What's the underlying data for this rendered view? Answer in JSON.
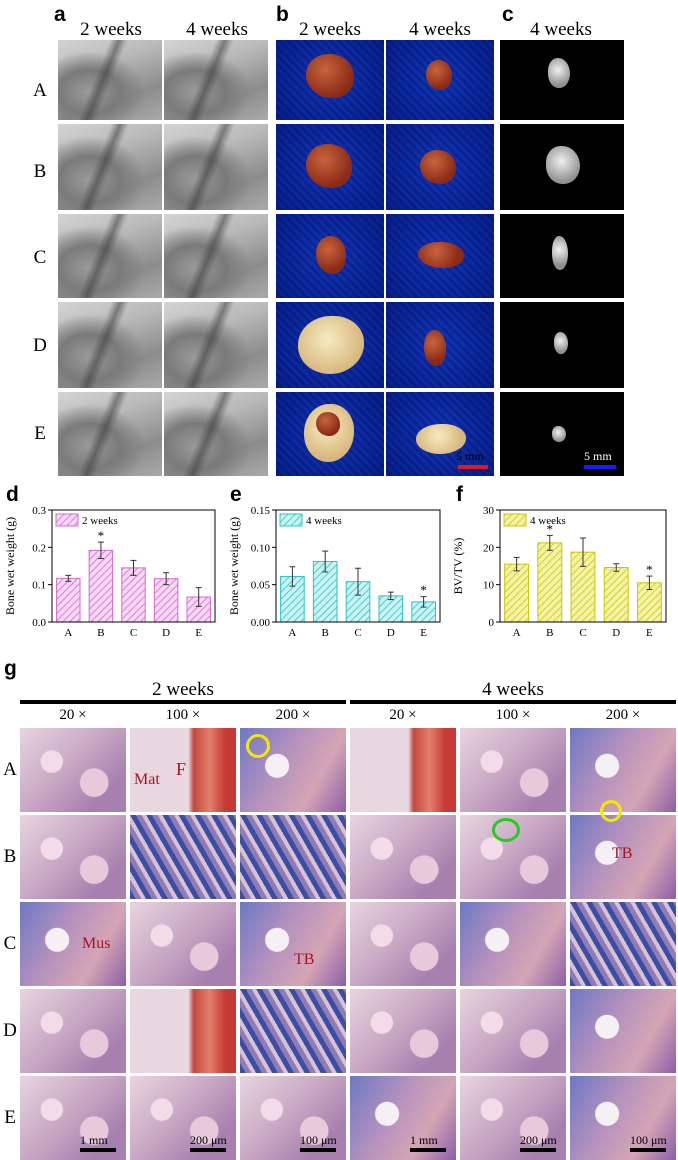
{
  "panel_labels": {
    "a": "a",
    "b": "b",
    "c": "c",
    "d": "d",
    "e": "e",
    "f": "f",
    "g": "g"
  },
  "top": {
    "a_headers": [
      "2 weeks",
      "4 weeks"
    ],
    "b_headers": [
      "2 weeks",
      "4 weeks"
    ],
    "c_header": "4 weeks",
    "rows": [
      "A",
      "B",
      "C",
      "D",
      "E"
    ],
    "scale_b": "5 mm",
    "scale_c": "5 mm",
    "colors": {
      "scale_b": "#e31a1c",
      "scale_c": "#1a1aff"
    }
  },
  "chart_data": [
    {
      "type": "bar",
      "legend": "2 weeks",
      "ylabel": "Bone wet weight (g)",
      "categories": [
        "A",
        "B",
        "C",
        "D",
        "E"
      ],
      "values": [
        0.117,
        0.192,
        0.145,
        0.116,
        0.067
      ],
      "errors": [
        0.008,
        0.022,
        0.02,
        0.016,
        0.025
      ],
      "significant": [
        "",
        "*",
        "",
        "",
        ""
      ],
      "ylim": [
        0,
        0.3
      ],
      "yticks": [
        "0.0",
        "0.1",
        "0.2",
        "0.3"
      ],
      "color": "#d36bd0",
      "fill": "#f6d8f4"
    },
    {
      "type": "bar",
      "legend": "4 weeks",
      "ylabel": "Bone wet weight (g)",
      "categories": [
        "A",
        "B",
        "C",
        "D",
        "E"
      ],
      "values": [
        0.061,
        0.081,
        0.054,
        0.035,
        0.027
      ],
      "errors": [
        0.013,
        0.014,
        0.018,
        0.005,
        0.007
      ],
      "significant": [
        "",
        "",
        "",
        "",
        "*"
      ],
      "ylim": [
        0,
        0.15
      ],
      "yticks": [
        "0.00",
        "0.05",
        "0.10",
        "0.15"
      ],
      "color": "#2cc3c3",
      "fill": "#c9f3f3"
    },
    {
      "type": "bar",
      "legend": "4 weeks",
      "ylabel": "BV/TV (%)",
      "categories": [
        "A",
        "B",
        "C",
        "D",
        "E"
      ],
      "values": [
        15.5,
        21.2,
        18.7,
        14.6,
        10.5
      ],
      "errors": [
        1.8,
        2.0,
        3.8,
        1.0,
        1.8
      ],
      "significant": [
        "",
        "*",
        "",
        "",
        "*"
      ],
      "ylim": [
        0,
        30
      ],
      "yticks": [
        "0",
        "10",
        "20",
        "30"
      ],
      "color": "#c9c900",
      "fill": "#f4f2a6"
    }
  ],
  "histology": {
    "group_headers": [
      "2 weeks",
      "4 weeks"
    ],
    "magnifications": [
      "20 ×",
      "100 ×",
      "200 ×",
      "20 ×",
      "100 ×",
      "200 ×"
    ],
    "rows": [
      "A",
      "B",
      "C",
      "D",
      "E"
    ],
    "tags": {
      "mat": "Mat",
      "f": "F",
      "tb_b": "TB",
      "mus": "Mus",
      "tb_c": "TB"
    },
    "scale_bars": [
      "1 mm",
      "200 μm",
      "100 μm",
      "1 mm",
      "200 μm",
      "100 μm"
    ],
    "colors": {
      "circle_yellow": "#f5e600",
      "circle_green": "#22cc22",
      "tag": "#a8141e"
    }
  }
}
